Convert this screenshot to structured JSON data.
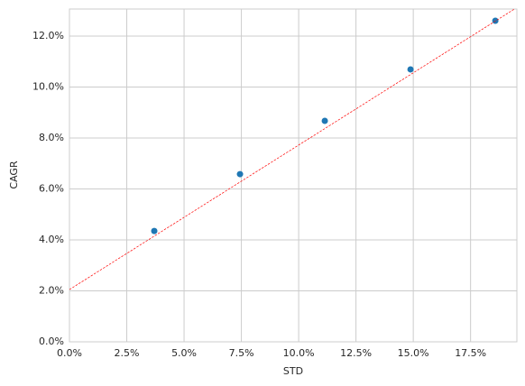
{
  "chart_data": {
    "type": "scatter",
    "xlabel": "STD",
    "ylabel": "CAGR",
    "xlim": [
      0,
      19.52
    ],
    "ylim": [
      0,
      13.06
    ],
    "xticks": [
      {
        "value": 0,
        "label": "0.0%"
      },
      {
        "value": 2.5,
        "label": "2.5%"
      },
      {
        "value": 5,
        "label": "5.0%"
      },
      {
        "value": 7.5,
        "label": "7.5%"
      },
      {
        "value": 10,
        "label": "10.0%"
      },
      {
        "value": 12.5,
        "label": "12.5%"
      },
      {
        "value": 15,
        "label": "15.0%"
      },
      {
        "value": 17.5,
        "label": "17.5%"
      }
    ],
    "yticks": [
      {
        "value": 0,
        "label": "0.0%"
      },
      {
        "value": 2,
        "label": "2.0%"
      },
      {
        "value": 4,
        "label": "4.0%"
      },
      {
        "value": 6,
        "label": "6.0%"
      },
      {
        "value": 8,
        "label": "8.0%"
      },
      {
        "value": 10,
        "label": "10.0%"
      },
      {
        "value": 12,
        "label": "12.0%"
      }
    ],
    "grid": true,
    "series": [
      {
        "type": "scatter",
        "color": "#1f77b4",
        "x": [
          3.7,
          7.44,
          11.14,
          14.88,
          18.58
        ],
        "values": [
          4.35,
          6.58,
          8.67,
          10.69,
          12.6
        ]
      },
      {
        "type": "line",
        "color": "#ff0000",
        "dashed": true,
        "x": [
          0,
          19.52
        ],
        "values": [
          2.05,
          13.12
        ]
      }
    ]
  }
}
